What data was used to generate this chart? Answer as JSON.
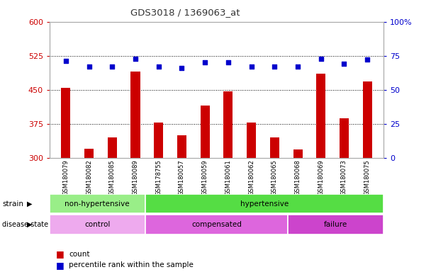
{
  "title": "GDS3018 / 1369063_at",
  "samples": [
    "GSM180079",
    "GSM180082",
    "GSM180085",
    "GSM180089",
    "GSM178755",
    "GSM180057",
    "GSM180059",
    "GSM180061",
    "GSM180062",
    "GSM180065",
    "GSM180068",
    "GSM180069",
    "GSM180073",
    "GSM180075"
  ],
  "counts": [
    455,
    320,
    345,
    490,
    378,
    350,
    415,
    447,
    378,
    345,
    318,
    485,
    387,
    468
  ],
  "percentiles": [
    71,
    67,
    67,
    73,
    67,
    66,
    70,
    70,
    67,
    67,
    67,
    73,
    69,
    72
  ],
  "ymin": 300,
  "ymax": 600,
  "ylim_left": [
    300,
    600
  ],
  "ylim_right": [
    0,
    100
  ],
  "yticks_left": [
    300,
    375,
    450,
    525,
    600
  ],
  "yticks_right": [
    0,
    25,
    50,
    75,
    100
  ],
  "bar_color": "#cc0000",
  "dot_color": "#0000cc",
  "bar_width": 0.4,
  "strain_groups": [
    {
      "label": "non-hypertensive",
      "start": 0,
      "end": 4,
      "color": "#99ee88"
    },
    {
      "label": "hypertensive",
      "start": 4,
      "end": 14,
      "color": "#55dd44"
    }
  ],
  "disease_groups": [
    {
      "label": "control",
      "start": 0,
      "end": 4,
      "color": "#eeaaee"
    },
    {
      "label": "compensated",
      "start": 4,
      "end": 10,
      "color": "#dd66dd"
    },
    {
      "label": "failure",
      "start": 10,
      "end": 14,
      "color": "#cc44cc"
    }
  ],
  "legend_count_color": "#cc0000",
  "legend_pct_color": "#0000cc",
  "background_color": "#ffffff",
  "tick_label_color_left": "#cc0000",
  "tick_label_color_right": "#0000cc",
  "title_color": "#333333"
}
